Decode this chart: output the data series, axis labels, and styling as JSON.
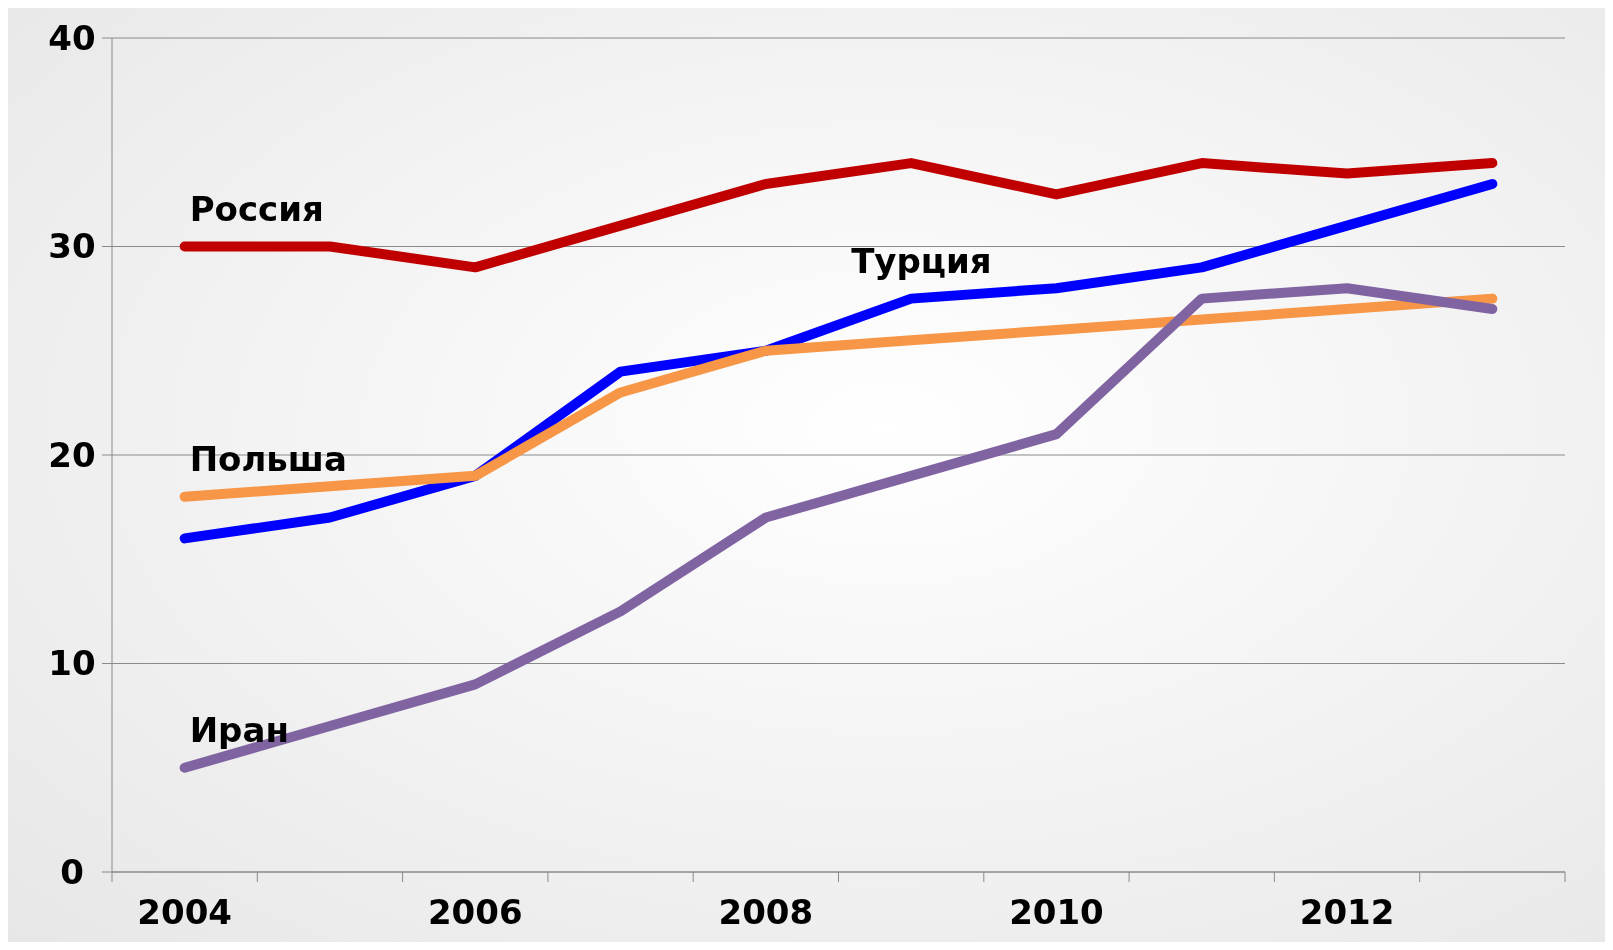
{
  "chart_data": {
    "type": "line",
    "categories": [
      "2004",
      null,
      "2006",
      null,
      "2008",
      null,
      "2010",
      null,
      "2012",
      null
    ],
    "series": [
      {
        "name": "Россия",
        "color": "#c00000",
        "values": [
          30,
          30,
          29,
          31,
          33,
          34,
          32.5,
          34,
          33.5,
          34
        ]
      },
      {
        "name": "Турция",
        "color": "#0000ff",
        "values": [
          16,
          17,
          19,
          24,
          25,
          27.5,
          28,
          29,
          31,
          33
        ]
      },
      {
        "name": "Польша",
        "color": "#f79646",
        "values": [
          18,
          18.5,
          19,
          23,
          25,
          25.5,
          26,
          26.5,
          27,
          27.5
        ]
      },
      {
        "name": "Иран",
        "color": "#8064a2",
        "values": [
          5,
          7,
          9,
          12.5,
          17,
          19,
          21,
          27.5,
          28,
          27
        ]
      }
    ],
    "ylim": [
      0,
      40
    ],
    "yticks": [
      0,
      10,
      20,
      30,
      40
    ],
    "grid": "y",
    "marker": "none",
    "line_style": "solid"
  }
}
